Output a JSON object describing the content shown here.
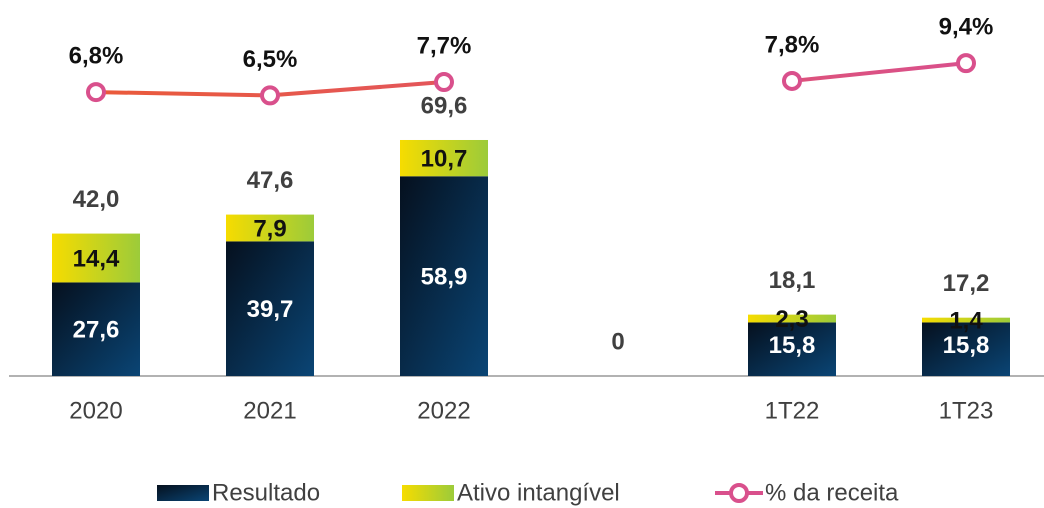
{
  "chart_data": {
    "type": "bar",
    "categories": [
      "2020",
      "2021",
      "2022",
      null,
      "1T22",
      "1T23"
    ],
    "stacked": true,
    "series": [
      {
        "name": "Resultado",
        "color": "#0b3a66",
        "values": [
          27.6,
          39.7,
          58.9,
          null,
          15.8,
          15.8
        ],
        "value_labels": [
          "27,6",
          "39,7",
          "58,9",
          null,
          "15,8",
          "15,8"
        ]
      },
      {
        "name": "Ativo intangível",
        "color": "#cfd41e",
        "values": [
          14.4,
          7.9,
          10.7,
          null,
          2.3,
          1.4
        ],
        "value_labels": [
          "14,4",
          "7,9",
          "10,7",
          null,
          "2,3",
          "1,4"
        ]
      },
      {
        "name": "% da receita",
        "type": "line",
        "axis": "y2",
        "color": "#e0566e",
        "values": [
          6.8,
          6.5,
          7.7,
          null,
          7.8,
          9.4
        ],
        "value_labels": [
          "6,8%",
          "6,5%",
          "7,7%",
          null,
          "7,8%",
          "9,4%"
        ]
      }
    ],
    "totals": [
      42.0,
      47.6,
      69.6,
      0,
      18.1,
      17.2
    ],
    "total_labels": [
      "42,0",
      "47,6",
      "69,6",
      "0",
      "18,1",
      "17,2"
    ],
    "ylim": [
      0,
      110
    ],
    "y2lim": [
      -18.7,
      14.8
    ],
    "legend": "bottom"
  }
}
